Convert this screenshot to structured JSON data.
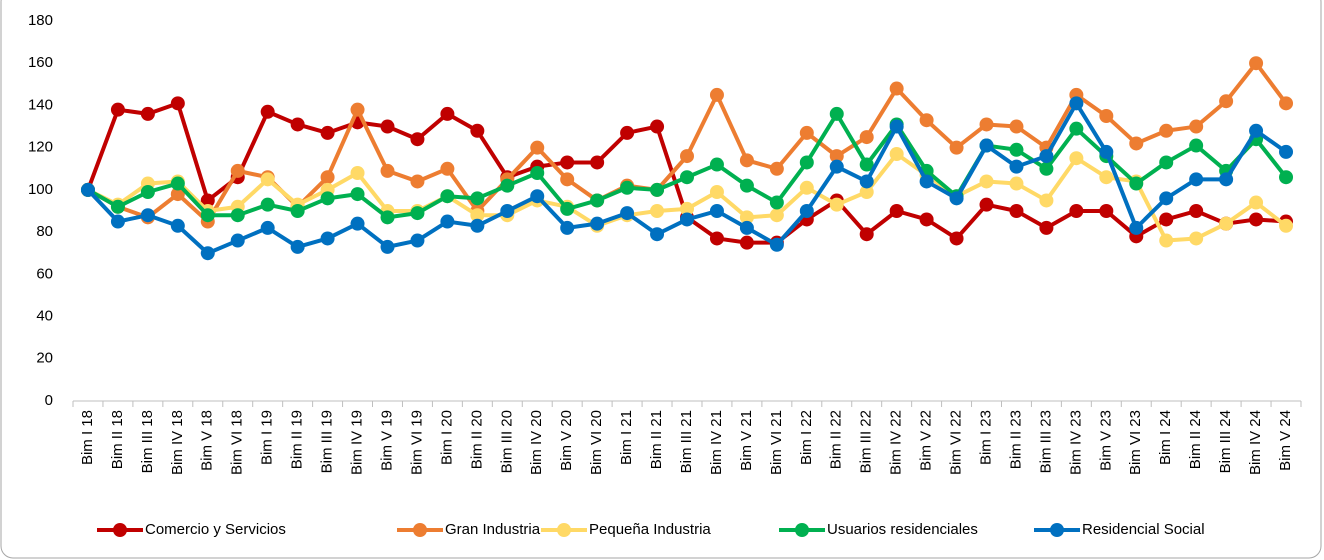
{
  "chart_data": {
    "type": "line",
    "categories": [
      "Bim I 18",
      "Bim II 18",
      "Bim III 18",
      "Bim IV 18",
      "Bim V 18",
      "Bim VI 18",
      "Bim I 19",
      "Bim II 19",
      "Bim III 19",
      "Bim IV 19",
      "Bim V 19",
      "Bim VI 19",
      "Bim I 20",
      "Bim II 20",
      "Bim III 20",
      "Bim IV 20",
      "Bim V 20",
      "Bim VI 20",
      "Bim I 21",
      "Bim II 21",
      "Bim III 21",
      "Bim IV 21",
      "Bim V 21",
      "Bim VI 21",
      "Bim I 22",
      "Bim II 22",
      "Bim III 22",
      "Bim IV 22",
      "Bim V 22",
      "Bim VI 22",
      "Bim I 23",
      "Bim II 23",
      "Bim III 23",
      "Bim IV 23",
      "Bim V 23",
      "Bim VI 23",
      "Bim I 24",
      "Bim II 24",
      "Bim III 24",
      "Bim IV 24",
      "Bim V 24"
    ],
    "series": [
      {
        "name": "Comercio y Servicios",
        "color": "#c00000",
        "values": [
          100,
          138,
          136,
          141,
          95,
          106,
          137,
          131,
          127,
          132,
          130,
          124,
          136,
          128,
          106,
          111,
          113,
          113,
          127,
          130,
          87,
          77,
          75,
          75,
          86,
          95,
          79,
          90,
          86,
          77,
          93,
          90,
          82,
          90,
          90,
          78,
          86,
          90,
          84,
          86,
          85
        ]
      },
      {
        "name": "Gran Industria",
        "color": "#ed7d31",
        "values": [
          100,
          92,
          87,
          98,
          85,
          109,
          106,
          92,
          106,
          138,
          109,
          104,
          110,
          90,
          105,
          120,
          105,
          95,
          102,
          100,
          116,
          145,
          114,
          110,
          127,
          116,
          125,
          148,
          133,
          120,
          131,
          130,
          120,
          145,
          135,
          122,
          128,
          130,
          142,
          160,
          141
        ]
      },
      {
        "name": "Pequeña Industria",
        "color": "#ffd966",
        "values": [
          100,
          93,
          103,
          104,
          90,
          92,
          105,
          93,
          100,
          108,
          90,
          90,
          97,
          88,
          88,
          95,
          92,
          83,
          88,
          90,
          91,
          99,
          87,
          88,
          101,
          93,
          99,
          117,
          107,
          97,
          104,
          103,
          95,
          115,
          106,
          104,
          76,
          77,
          84,
          94,
          83
        ]
      },
      {
        "name": "Usuarios residenciales",
        "color": "#00b050",
        "values": [
          100,
          92,
          99,
          103,
          88,
          88,
          93,
          90,
          96,
          98,
          87,
          89,
          97,
          96,
          102,
          108,
          91,
          95,
          101,
          100,
          106,
          112,
          102,
          94,
          113,
          136,
          112,
          131,
          109,
          97,
          121,
          119,
          110,
          129,
          116,
          103,
          113,
          121,
          109,
          124,
          106
        ]
      },
      {
        "name": "Residencial Social",
        "color": "#0070c0",
        "values": [
          100,
          85,
          88,
          83,
          70,
          76,
          82,
          73,
          77,
          84,
          73,
          76,
          85,
          83,
          90,
          97,
          82,
          84,
          89,
          79,
          86,
          90,
          82,
          74,
          90,
          111,
          104,
          130,
          104,
          96,
          121,
          111,
          116,
          141,
          118,
          82,
          96,
          105,
          105,
          128,
          118
        ]
      }
    ],
    "ylim": [
      0,
      180
    ],
    "yticks": [
      0,
      20,
      40,
      60,
      80,
      100,
      120,
      140,
      160,
      180
    ],
    "grid": false,
    "legend": "bottom"
  }
}
